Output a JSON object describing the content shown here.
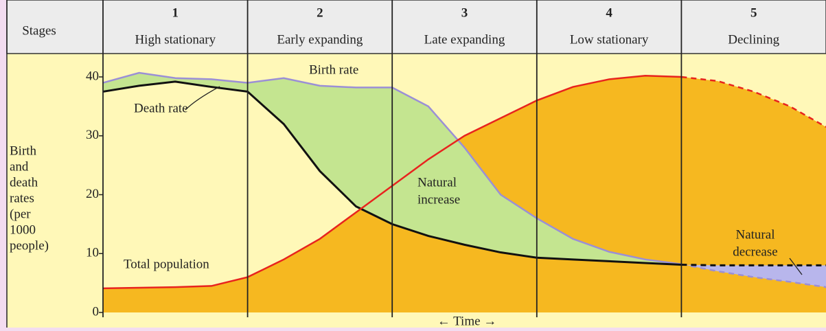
{
  "chart_data": {
    "type": "line",
    "stage_header": "Stages",
    "stages": [
      {
        "number": "1",
        "name": "High stationary"
      },
      {
        "number": "2",
        "name": "Early expanding"
      },
      {
        "number": "3",
        "name": "Late expanding"
      },
      {
        "number": "4",
        "name": "Low stationary"
      },
      {
        "number": "5",
        "name": "Declining"
      }
    ],
    "ylabel": [
      "Birth",
      "and",
      "death",
      "rates",
      "(per",
      "1000",
      "people)"
    ],
    "xlabel": "← Time →",
    "ylim": [
      0,
      40
    ],
    "yticks": [
      0,
      10,
      20,
      30,
      40
    ],
    "series": [
      {
        "name": "Birth rate",
        "color": "#9b8fd6",
        "values": [
          39,
          40.7,
          39.8,
          39.6,
          39,
          39.8,
          38.5,
          38.2,
          38.2,
          35,
          28,
          20,
          16,
          12.5,
          10.3,
          9,
          8.2,
          7,
          6,
          5.2,
          4.3
        ]
      },
      {
        "name": "Death rate",
        "color": "#111111",
        "values": [
          37.5,
          38.5,
          39.2,
          38.3,
          37.5,
          32,
          24,
          18,
          15,
          13,
          11.5,
          10.2,
          9.3,
          9,
          8.7,
          8.4,
          8.1,
          8,
          8,
          8,
          8
        ]
      },
      {
        "name": "Total population",
        "color": "#e8231e",
        "values": [
          4.1,
          4.2,
          4.3,
          4.5,
          6,
          9,
          12.5,
          17,
          21.5,
          26,
          30,
          33,
          36,
          38.3,
          39.6,
          40.2,
          40,
          39.3,
          37.5,
          35,
          31.5
        ]
      }
    ],
    "annotations": [
      {
        "lines": [
          "Natural",
          "increase"
        ]
      },
      {
        "lines": [
          "Natural",
          "decrease"
        ]
      }
    ],
    "colors": {
      "background": "#fff8b8",
      "population_area": "#f6b820",
      "increase_area": "#c4e590",
      "decrease_area": "#b8b6ec"
    }
  }
}
